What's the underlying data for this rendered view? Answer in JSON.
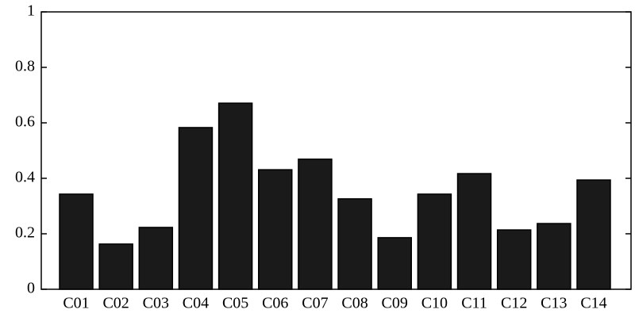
{
  "chart_data": {
    "type": "bar",
    "categories": [
      "C01",
      "C02",
      "C03",
      "C04",
      "C05",
      "C06",
      "C07",
      "C08",
      "C09",
      "C10",
      "C11",
      "C12",
      "C13",
      "C14"
    ],
    "values": [
      0.343,
      0.163,
      0.223,
      0.583,
      0.671,
      0.431,
      0.469,
      0.326,
      0.186,
      0.343,
      0.417,
      0.214,
      0.237,
      0.394
    ],
    "color": "#1a1a1a",
    "ylim": [
      0,
      1
    ],
    "yticks": [
      0,
      0.2,
      0.4,
      0.6,
      0.8,
      1
    ],
    "grid": false
  }
}
